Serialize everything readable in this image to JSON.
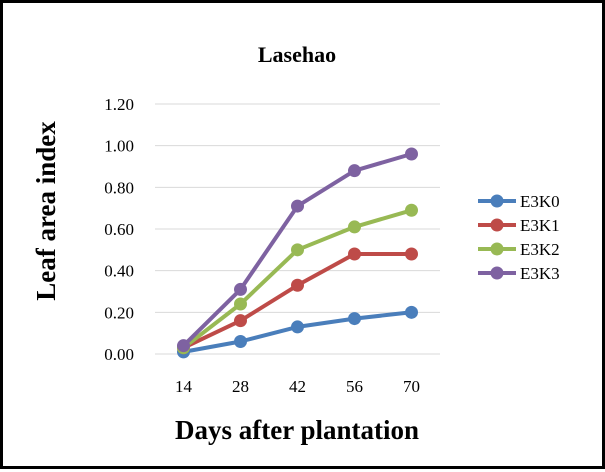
{
  "chart_data": {
    "type": "line",
    "title": "Lasehao",
    "xlabel": "Days after plantation",
    "ylabel": "Leaf area index",
    "x": [
      14,
      28,
      42,
      56,
      70
    ],
    "x_tick_labels": [
      "14",
      "28",
      "42",
      "56",
      "70"
    ],
    "ylim": [
      0,
      1.2
    ],
    "y_ticks": [
      0,
      0.2,
      0.4,
      0.6,
      0.8,
      1.0,
      1.2
    ],
    "y_tick_labels": [
      "0.00",
      "0.20",
      "0.40",
      "0.60",
      "0.80",
      "1.00",
      "1.20"
    ],
    "grid": true,
    "legend_position": "right",
    "series": [
      {
        "name": "E3K0",
        "color": "#4a7ebb",
        "values": [
          0.01,
          0.06,
          0.13,
          0.17,
          0.2
        ]
      },
      {
        "name": "E3K1",
        "color": "#be4b48",
        "values": [
          0.03,
          0.16,
          0.33,
          0.48,
          0.48
        ]
      },
      {
        "name": "E3K2",
        "color": "#98b954",
        "values": [
          0.03,
          0.24,
          0.5,
          0.61,
          0.69
        ]
      },
      {
        "name": "E3K3",
        "color": "#7e62a1",
        "values": [
          0.04,
          0.31,
          0.71,
          0.88,
          0.96
        ]
      }
    ]
  }
}
